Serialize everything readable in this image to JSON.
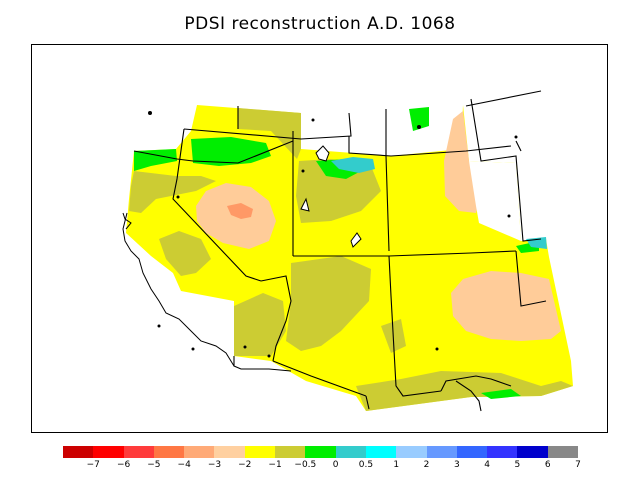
{
  "title": "PDSI reconstruction A.D. 1068",
  "legend": {
    "colors": [
      "#cc0000",
      "#ff0000",
      "#ff3b3b",
      "#ff7744",
      "#ffaa77",
      "#ffd0a0",
      "#ffff00",
      "#cccc33",
      "#00ee00",
      "#33cccc",
      "#00ffff",
      "#99ccff",
      "#6699ff",
      "#3366ff",
      "#3333ff",
      "#0000cc",
      "#888888"
    ],
    "labels": [
      "−7",
      "−6",
      "−5",
      "−4",
      "−3",
      "−2",
      "−1",
      "−0.5",
      "0",
      "0.5",
      "1",
      "2",
      "3",
      "4",
      "5",
      "6",
      "7"
    ]
  },
  "fill_colors": {
    "yellow": "#ffff00",
    "olive": "#cccc33",
    "peach": "#ffcc99",
    "salmon": "#ff9966",
    "green": "#00ee00",
    "teal": "#33cccc"
  }
}
